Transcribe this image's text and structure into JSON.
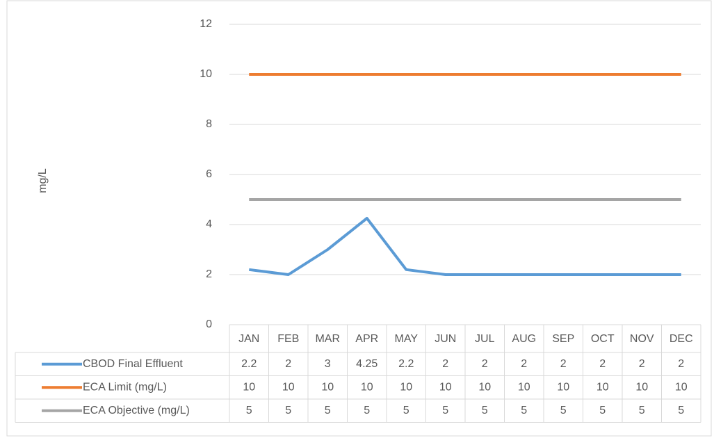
{
  "chart_data": {
    "type": "line",
    "y_label": "mg/L",
    "categories": [
      "JAN",
      "FEB",
      "MAR",
      "APR",
      "MAY",
      "JUN",
      "JUL",
      "AUG",
      "SEP",
      "OCT",
      "NOV",
      "DEC"
    ],
    "series": [
      {
        "name": "CBOD Final Effluent",
        "color": "#5b9bd5",
        "values": [
          2.2,
          2,
          3,
          4.25,
          2.2,
          2,
          2,
          2,
          2,
          2,
          2,
          2
        ]
      },
      {
        "name": "ECA Limit (mg/L)",
        "color": "#ed7d31",
        "values": [
          10,
          10,
          10,
          10,
          10,
          10,
          10,
          10,
          10,
          10,
          10,
          10
        ]
      },
      {
        "name": "ECA Objective (mg/L)",
        "color": "#a5a5a5",
        "values": [
          5,
          5,
          5,
          5,
          5,
          5,
          5,
          5,
          5,
          5,
          5,
          5
        ]
      }
    ],
    "ylim": [
      0,
      12
    ],
    "yticks": [
      0,
      2,
      4,
      6,
      8,
      10,
      12
    ],
    "grid": true,
    "data_table": true
  }
}
